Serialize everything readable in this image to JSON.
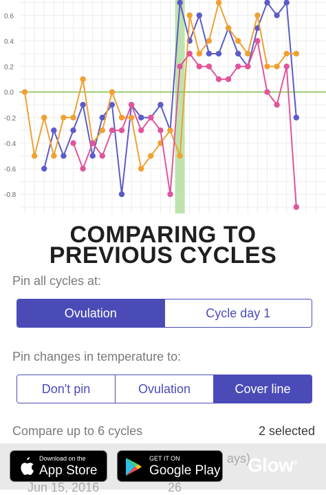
{
  "headline": {
    "line1": "COMPARING TO",
    "line2": "PREVIOUS CYCLES"
  },
  "pin_cycles": {
    "label": "Pin all cycles at:",
    "options": [
      "Ovulation",
      "Cycle day 1"
    ],
    "selected": "Ovulation"
  },
  "pin_changes": {
    "label": "Pin changes in temperature to:",
    "options": [
      "Don't pin",
      "Ovulation",
      "Cover line"
    ],
    "selected": "Cover line"
  },
  "compare": {
    "label": "Compare up to 6 cycles",
    "count": "2 selected"
  },
  "ghost_row": {
    "date": "Jun 15, 2016",
    "days": "26",
    "days_suffix": "ays)"
  },
  "badges": {
    "app_store": {
      "small": "Download on the",
      "big": "App Store"
    },
    "google_play": {
      "small": "GET IT ON",
      "big": "Google Play"
    }
  },
  "brand": {
    "name": "Glow",
    "mark": "®"
  },
  "colors": {
    "accent": "#4b4bb8",
    "series_blue": "#5b5bc8",
    "series_orange": "#f0a030",
    "series_pink": "#e0559a",
    "cover_line": "#7cbf4a",
    "ovulation_band": "#bfe3ae"
  },
  "chart_data": {
    "type": "line",
    "yticks": [
      "0.6",
      "0.4",
      "0.2",
      "0.0",
      "-0.2",
      "-0.4",
      "-0.6",
      "-0.8"
    ],
    "ylim": [
      -0.95,
      0.72
    ],
    "x": [
      0,
      1,
      2,
      3,
      4,
      5,
      6,
      7,
      8,
      9,
      10,
      11,
      12,
      13,
      14,
      15,
      16,
      17,
      18,
      19,
      20,
      21,
      22,
      23,
      24,
      25,
      26,
      27,
      28,
      29,
      30
    ],
    "ovulation_index": 16,
    "cover_line": 0.0,
    "series": [
      {
        "color": "#5b5bc8",
        "points": [
          [
            2,
            -0.6
          ],
          [
            3,
            -0.3
          ],
          [
            4,
            -0.5
          ],
          [
            5,
            -0.3
          ],
          [
            6,
            -0.1
          ],
          [
            7,
            -0.5
          ],
          [
            8,
            -0.2
          ],
          [
            9,
            -0.1
          ],
          [
            10,
            -0.8
          ],
          [
            11,
            -0.1
          ],
          [
            12,
            -0.2
          ],
          [
            13,
            -0.2
          ],
          [
            14,
            -0.1
          ],
          [
            15,
            -0.3
          ],
          [
            16,
            0.7
          ],
          [
            17,
            0.4
          ],
          [
            18,
            0.6
          ],
          [
            19,
            0.3
          ],
          [
            20,
            0.3
          ],
          [
            21,
            0.5
          ],
          [
            22,
            0.3
          ],
          [
            23,
            0.2
          ],
          [
            24,
            0.5
          ],
          [
            25,
            0.7
          ],
          [
            26,
            0.6
          ],
          [
            27,
            0.7
          ],
          [
            28,
            -0.2
          ]
        ]
      },
      {
        "color": "#f0a030",
        "points": [
          [
            0,
            0.0
          ],
          [
            1,
            -0.5
          ],
          [
            2,
            -0.2
          ],
          [
            3,
            -0.5
          ],
          [
            4,
            -0.2
          ],
          [
            5,
            -0.2
          ],
          [
            6,
            0.1
          ],
          [
            7,
            -0.4
          ],
          [
            8,
            -0.3
          ],
          [
            9,
            0.0
          ],
          [
            10,
            -0.2
          ],
          [
            11,
            -0.2
          ],
          [
            12,
            -0.6
          ],
          [
            13,
            -0.5
          ],
          [
            14,
            -0.4
          ],
          [
            15,
            -0.3
          ],
          [
            16,
            -0.5
          ],
          [
            17,
            0.6
          ],
          [
            18,
            0.3
          ],
          [
            19,
            0.4
          ],
          [
            20,
            0.7
          ],
          [
            21,
            0.5
          ],
          [
            22,
            0.4
          ],
          [
            23,
            0.3
          ],
          [
            24,
            0.6
          ],
          [
            25,
            0.2
          ],
          [
            26,
            0.2
          ],
          [
            27,
            0.3
          ],
          [
            28,
            0.3
          ]
        ]
      },
      {
        "color": "#e0559a",
        "points": [
          [
            5,
            -0.4
          ],
          [
            6,
            -0.6
          ],
          [
            7,
            -0.4
          ],
          [
            8,
            -0.5
          ],
          [
            9,
            -0.3
          ],
          [
            10,
            -0.3
          ],
          [
            11,
            -0.1
          ],
          [
            12,
            -0.3
          ],
          [
            13,
            -0.2
          ],
          [
            14,
            -0.3
          ],
          [
            15,
            -0.8
          ],
          [
            16,
            0.2
          ],
          [
            17,
            0.3
          ],
          [
            18,
            0.2
          ],
          [
            19,
            0.2
          ],
          [
            20,
            0.1
          ],
          [
            21,
            0.1
          ],
          [
            22,
            0.2
          ],
          [
            23,
            0.2
          ],
          [
            24,
            0.4
          ],
          [
            25,
            0.0
          ],
          [
            26,
            -0.1
          ],
          [
            27,
            0.2
          ],
          [
            28,
            -0.9
          ]
        ]
      }
    ]
  }
}
